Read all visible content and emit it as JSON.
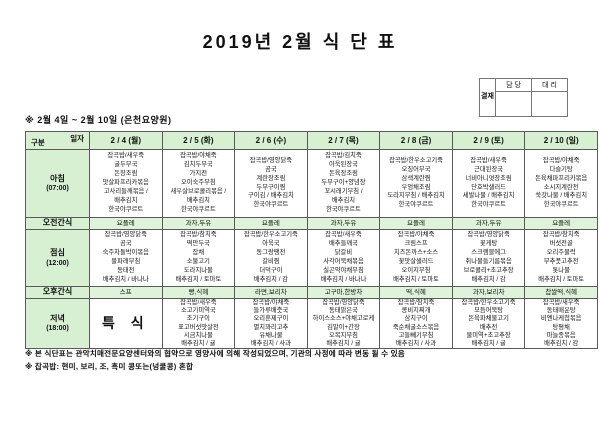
{
  "title": "2019년 2월 식 단 표",
  "approval": {
    "stamp_label": "결재",
    "col_manager": "담 당",
    "col_deputy": "대 리"
  },
  "subtitle": "※ 2월 4일 ~ 2월 10일 (은천요양원)",
  "colors": {
    "header_green": "#d7f0d2",
    "snack_green": "#def3d9",
    "border": "#5a5a5a"
  },
  "table": {
    "corner": {
      "top": "일자",
      "bottom": "구분"
    },
    "days": [
      "2 / 4 (월)",
      "2 / 5 (화)",
      "2 / 6 (수)",
      "2 / 7 (목)",
      "2 / 8 (금)",
      "2 / 9 (토)",
      "2 / 10 (일)"
    ],
    "rows": [
      {
        "label": "아침",
        "time": "(07:00)",
        "kind": "meal",
        "cells": [
          [
            "잡곡밥/새우죽",
            "굴두부국",
            "돈장조림",
            "맛살파프리카볶음",
            "고사리들깨볶음 /",
            "배추김치",
            "한국야쿠르트"
          ],
          [
            "잡곡밥/야채죽",
            "김치두부국",
            "가지전",
            "오이숙주무침",
            "새우살브로콜리볶음 /",
            "배추김치",
            "한국야쿠르트"
          ],
          [
            "잡곡밥/영양닭죽",
            "곰국",
            "계란장조림",
            "두부구이찜",
            "구이김 / 배추김치",
            "한국야쿠르트"
          ],
          [
            "잡곡밥/김치죽",
            "아욱된장국",
            "돈육장조림",
            "두부구이+양념장",
            "꼬시래기무침 /",
            "배추김치",
            "한국야쿠르트"
          ],
          [
            "잡곡밥/한우소고기죽",
            "오징어무국",
            "삼색계란찜",
            "우엉채조림",
            "도라지무침 / 배추김치",
            "한국야쿠르트"
          ],
          [
            "잡곡밥/새우죽",
            "근대된장국",
            "너비아니엿장조림",
            "단호박샐러드",
            "세발나물 / 배추김치",
            "한국야쿠르트"
          ],
          [
            "잡곡밥/야채죽",
            "다슬기탕",
            "돈육채파프리카볶음",
            "소시지계란전",
            "쑥갓나물 / 배추김치",
            "한국야쿠르트"
          ]
        ]
      },
      {
        "label": "오전간식",
        "time": "",
        "kind": "snack",
        "cells": [
          "요플레",
          "과자,두유",
          "요플레",
          "과자,두유",
          "요플레",
          "과자,두유",
          "요플레"
        ]
      },
      {
        "label": "점심",
        "time": "(12:00)",
        "kind": "meal",
        "cells": [
          [
            "잡곡밥/영양닭죽",
            "곰국",
            "숙주차돌박이볶음",
            "물파래부침",
            "동태전",
            "배추김치 / 바나나"
          ],
          [
            "잡곡밥/참치죽",
            "떡만두국",
            "잡채",
            "소불고기",
            "도라지나물",
            "배추김치 / 토마토"
          ],
          [
            "잡곡밥/한우소고기죽",
            "아욱국",
            "동그랑땡전",
            "갈비찜",
            "더덕구이",
            "배추김치 / 감"
          ],
          [
            "잡곡밥/새우죽",
            "배추들깨국",
            "닭갈비",
            "사각어묵채볶음",
            "실곤약야채무침",
            "배추김치 / 바나나"
          ],
          [
            "잡곡밥/야채죽",
            "크림스프",
            "치즈돈까스+소스",
            "꽃맛살샐러드",
            "오이지무침",
            "배추김치 / 토마토"
          ],
          [
            "잡곡밥/영양닭죽",
            "꽃게탕",
            "스크램블에그",
            "취나물들기름볶음",
            "브로콜리+초고추장",
            "배추김치 / 감"
          ],
          [
            "잡곡밥/참치죽",
            "버섯전골",
            "오리주물럭",
            "부추풋고추전",
            "톳나물",
            "배추김치 / 토마토"
          ]
        ]
      },
      {
        "label": "오후간식",
        "time": "",
        "kind": "snack",
        "cells": [
          "스프",
          "빵,식혜",
          "라면,보리차",
          "고구마,한방차",
          "떡,식혜",
          "과자,보리차",
          "찹쌀떡,식혜"
        ]
      },
      {
        "label": "저녁",
        "time": "(18:00)",
        "kind": "meal",
        "dinner": true,
        "cells": [
          {
            "special": "특 식"
          },
          [
            "잡곡밥/새우죽",
            "소고기미역국",
            "조기구이",
            "표고버섯맛살전",
            "시금치나물",
            "배추김치 / 귤"
          ],
          [
            "잡곡밥/야채죽",
            "들가루배춧국",
            "오리훈제구이",
            "멸치꽈리고추",
            "유채나물",
            "배추김치 / 사과"
          ],
          [
            "잡곡밥/영양닭죽",
            "동태맑은국",
            "하이스소스+야채고로케",
            "김말이+간장",
            "오복지무침",
            "배추김치 / 귤"
          ],
          [
            "잡곡밥/참치죽",
            "콩비지찌개",
            "삼치구이",
            "죽순채굴소스볶음",
            "고들빼기무침",
            "배추김치 / 사과"
          ],
          [
            "잡곡밥/한우소고기죽",
            "모듬어묵탕",
            "돈육파채불고기",
            "배추전",
            "물미역+초고추장",
            "배추김치 / 귤"
          ],
          [
            "잡곡밥/새우죽",
            "동태매운탕",
            "비엔나케첩볶음",
            "탕평채",
            "마늘종볶음",
            "배추김치 / 감"
          ]
        ]
      }
    ]
  },
  "footnotes": [
    "※ 본 식단표는 관악치매전문요양센터와의 협약으로 영양사에 의해 작성되었으며, 기관의 사정에 따라 변동 될 수 있음",
    "※ 잡곡밥: 현미, 보리, 조, 흑미 콩또는(넝쿨콩) 혼합"
  ]
}
